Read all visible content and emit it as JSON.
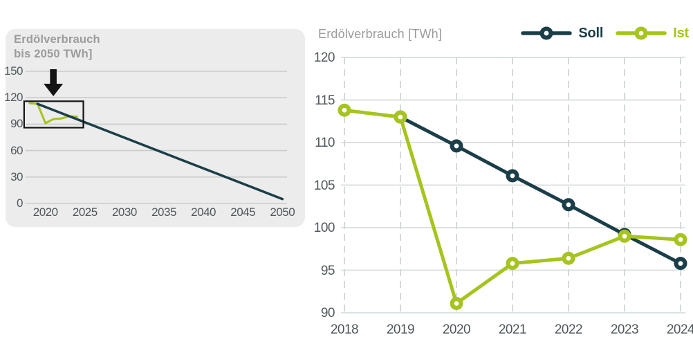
{
  "colors": {
    "background": "#ffffff",
    "soll": "#1b3e48",
    "ist": "#a5c41e",
    "title_gray": "#9b9b9b",
    "tick_text": "#50585c",
    "grid_detail": "#dce2e3",
    "grid_dashed": "#d4d9da",
    "grid_overview": "#c9cdca",
    "panel_bg": "#ececec",
    "black": "#141414"
  },
  "overview": {
    "title_line1": "Erdölverbrauch",
    "title_line2": "bis 2050 TWh]"
  },
  "detail": {
    "title": "Erdölverbrauch [TWh]",
    "legend": [
      {
        "label": "Soll",
        "color_key": "soll"
      },
      {
        "label": "Ist",
        "color_key": "ist"
      }
    ]
  },
  "chart_data": [
    {
      "id": "overview",
      "type": "line",
      "title": "Erdölverbrauch bis 2050 TWh]",
      "xlabel": "",
      "ylabel": "",
      "xlim": [
        2018,
        2051
      ],
      "ylim": [
        0,
        150
      ],
      "x_ticks": [
        2020,
        2025,
        2030,
        2035,
        2040,
        2045,
        2050
      ],
      "y_ticks": [
        0,
        30,
        60,
        90,
        120,
        150
      ],
      "grid": "horizontal-solid",
      "legend_position": "none",
      "series": [
        {
          "name": "Ist",
          "color_key": "ist",
          "markers": false,
          "x": [
            2018,
            2019,
            2020,
            2021,
            2022,
            2023,
            2024
          ],
          "y": [
            113.8,
            113,
            91.1,
            95.8,
            96.4,
            99,
            98.6
          ]
        },
        {
          "name": "Soll",
          "color_key": "soll",
          "markers": false,
          "x": [
            2019,
            2050
          ],
          "y": [
            113,
            5
          ]
        }
      ],
      "annotations": {
        "zoom_box": {
          "x0": 2017.3,
          "x1": 2024.8,
          "y0": 86,
          "y1": 116
        },
        "arrow_down_at_x": 2021
      }
    },
    {
      "id": "detail",
      "type": "line",
      "title": "Erdölverbrauch [TWh]",
      "xlabel": "",
      "ylabel": "",
      "xlim": [
        2018,
        2024
      ],
      "ylim": [
        90,
        120
      ],
      "x_ticks": [
        2018,
        2019,
        2020,
        2021,
        2022,
        2023,
        2024
      ],
      "y_ticks": [
        90,
        95,
        100,
        105,
        110,
        115,
        120
      ],
      "grid": "horizontal-solid, vertical-dashed",
      "legend_position": "top-right",
      "series": [
        {
          "name": "Soll",
          "color_key": "soll",
          "markers": true,
          "x": [
            2019,
            2020,
            2021,
            2022,
            2023,
            2024
          ],
          "y": [
            113,
            109.6,
            106.1,
            102.7,
            99.2,
            95.8
          ]
        },
        {
          "name": "Ist",
          "color_key": "ist",
          "markers": true,
          "x": [
            2018,
            2019,
            2020,
            2021,
            2022,
            2023,
            2024
          ],
          "y": [
            113.8,
            113,
            91.1,
            95.8,
            96.4,
            99,
            98.6
          ]
        }
      ]
    }
  ]
}
